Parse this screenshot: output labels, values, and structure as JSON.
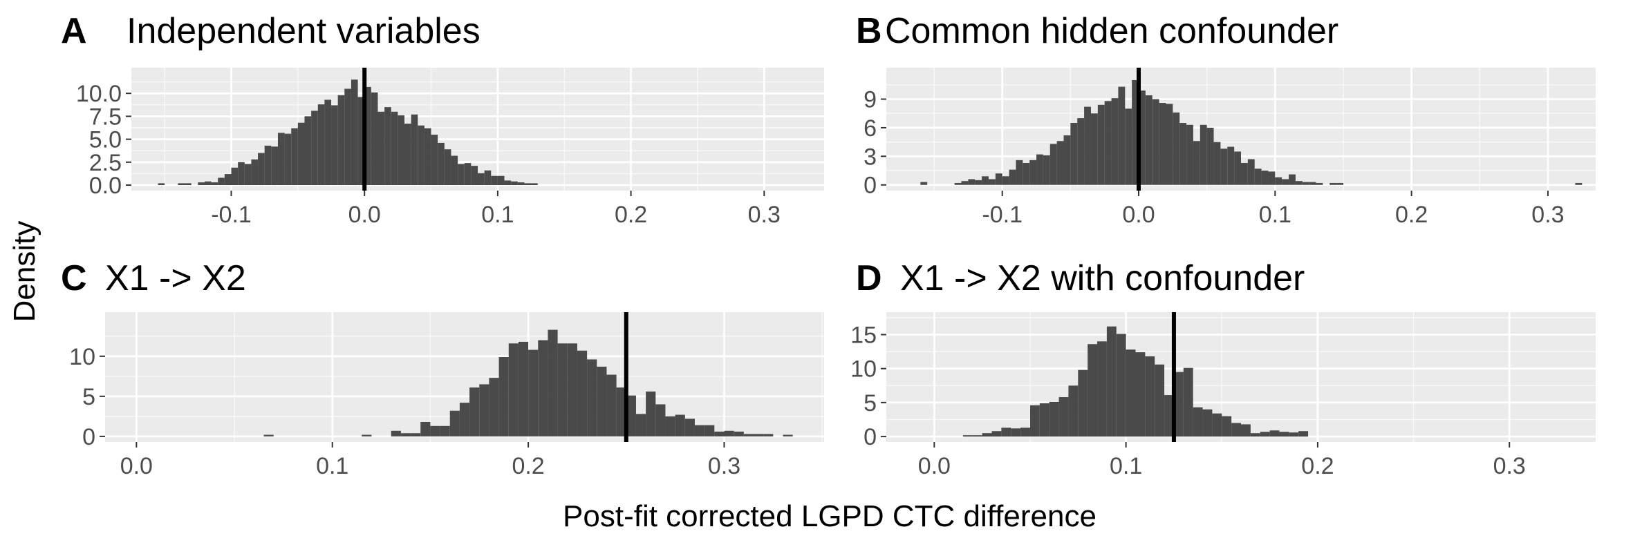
{
  "chart_data": [
    {
      "type": "bar",
      "tag": "A",
      "title": "Independent variables",
      "xlim": [
        -0.175,
        0.345
      ],
      "ylim": [
        -0.6,
        12.8
      ],
      "x_ticks": [
        -0.1,
        0.0,
        0.1,
        0.2,
        0.3
      ],
      "x_tick_labels": [
        "-0.1",
        "0.0",
        "0.1",
        "0.2",
        "0.3"
      ],
      "y_ticks": [
        0,
        2.5,
        5,
        7.5,
        10
      ],
      "y_tick_labels": [
        "0.0",
        "2.5",
        "5.0",
        "7.5",
        "10.0"
      ],
      "bin_width": 0.005,
      "bin_centers": [
        -0.1525,
        -0.1375,
        -0.1325,
        -0.1225,
        -0.1175,
        -0.1125,
        -0.1075,
        -0.1025,
        -0.0975,
        -0.0925,
        -0.0875,
        -0.0825,
        -0.0775,
        -0.0725,
        -0.0675,
        -0.0625,
        -0.0575,
        -0.0525,
        -0.0475,
        -0.0425,
        -0.0375,
        -0.0325,
        -0.0275,
        -0.0225,
        -0.0175,
        -0.0125,
        -0.0075,
        -0.0025,
        0.0025,
        0.0075,
        0.0125,
        0.0175,
        0.0225,
        0.0275,
        0.0325,
        0.0375,
        0.0425,
        0.0475,
        0.0525,
        0.0575,
        0.0625,
        0.0675,
        0.0725,
        0.0775,
        0.0825,
        0.0875,
        0.0925,
        0.0975,
        0.1025,
        0.1075,
        0.1125,
        0.1175,
        0.1225,
        0.1275
      ],
      "values": [
        0.2,
        0.2,
        0.2,
        0.3,
        0.4,
        0.3,
        0.8,
        1.2,
        1.9,
        2.5,
        2.3,
        2.8,
        3.5,
        4.3,
        4.2,
        5.7,
        5.6,
        6.2,
        6.8,
        7.5,
        8.1,
        8.8,
        9.3,
        8.7,
        9.8,
        10.5,
        11.5,
        9.6,
        10.7,
        10.1,
        8.0,
        8.5,
        8.0,
        7.6,
        6.7,
        7.7,
        6.5,
        6.2,
        5.5,
        4.6,
        3.9,
        3.2,
        2.3,
        2.4,
        2.1,
        1.3,
        1.6,
        1.0,
        1.0,
        0.5,
        0.4,
        0.3,
        0.2,
        0.2
      ],
      "reference_line_x": 0.0,
      "grid": true
    },
    {
      "type": "bar",
      "tag": "B",
      "title": "Common hidden confounder",
      "xlim": [
        -0.185,
        0.335
      ],
      "ylim": [
        -0.6,
        12.3
      ],
      "x_ticks": [
        -0.1,
        0.0,
        0.1,
        0.2,
        0.3
      ],
      "x_tick_labels": [
        "-0.1",
        "0.0",
        "0.1",
        "0.2",
        "0.3"
      ],
      "y_ticks": [
        0,
        3,
        6,
        9
      ],
      "y_tick_labels": [
        "0",
        "3",
        "6",
        "9"
      ],
      "bin_width": 0.005,
      "bin_centers": [
        -0.1575,
        -0.1325,
        -0.1275,
        -0.1225,
        -0.1175,
        -0.1125,
        -0.1075,
        -0.1025,
        -0.0975,
        -0.0925,
        -0.0875,
        -0.0825,
        -0.0775,
        -0.0725,
        -0.0675,
        -0.0625,
        -0.0575,
        -0.0525,
        -0.0475,
        -0.0425,
        -0.0375,
        -0.0325,
        -0.0275,
        -0.0225,
        -0.0175,
        -0.0125,
        -0.0075,
        -0.0025,
        0.0025,
        0.0075,
        0.0125,
        0.0175,
        0.0225,
        0.0275,
        0.0325,
        0.0375,
        0.0425,
        0.0475,
        0.0525,
        0.0575,
        0.0625,
        0.0675,
        0.0725,
        0.0775,
        0.0825,
        0.0875,
        0.0925,
        0.0975,
        0.1025,
        0.1075,
        0.1125,
        0.1175,
        0.1225,
        0.1275,
        0.1325,
        0.1425,
        0.1475,
        0.3225
      ],
      "values": [
        0.3,
        0.2,
        0.4,
        0.6,
        0.5,
        0.9,
        0.6,
        1.2,
        0.9,
        1.6,
        2.6,
        2.3,
        2.6,
        3.2,
        3.1,
        4.3,
        4.6,
        5.2,
        6.5,
        7.0,
        8.2,
        7.5,
        8.4,
        8.8,
        9.1,
        10.3,
        8.0,
        11.0,
        9.9,
        9.4,
        9.0,
        8.6,
        8.5,
        7.6,
        6.5,
        6.3,
        4.6,
        6.3,
        6.0,
        4.5,
        3.8,
        4.0,
        3.5,
        2.3,
        2.7,
        1.7,
        1.5,
        1.4,
        0.8,
        0.6,
        1.1,
        0.4,
        0.3,
        0.3,
        0.2,
        0.2,
        0.2,
        0.2
      ],
      "reference_line_x": 0.0,
      "grid": true
    },
    {
      "type": "bar",
      "tag": "C",
      "title": "X1 -> X2",
      "xlim": [
        -0.016,
        0.351
      ],
      "ylim": [
        -0.7,
        15.5
      ],
      "x_ticks": [
        0.0,
        0.1,
        0.2,
        0.3
      ],
      "x_tick_labels": [
        "0.0",
        "0.1",
        "0.2",
        "0.3"
      ],
      "y_ticks": [
        0,
        5,
        10
      ],
      "y_tick_labels": [
        "0",
        "5",
        "10"
      ],
      "bin_width": 0.005,
      "bin_centers": [
        0.0675,
        0.1175,
        0.1325,
        0.1375,
        0.1425,
        0.1475,
        0.1525,
        0.1575,
        0.1625,
        0.1675,
        0.1725,
        0.1775,
        0.1825,
        0.1875,
        0.1925,
        0.1975,
        0.2025,
        0.2075,
        0.2125,
        0.2175,
        0.2225,
        0.2275,
        0.2325,
        0.2375,
        0.2425,
        0.2475,
        0.2525,
        0.2575,
        0.2625,
        0.2675,
        0.2725,
        0.2775,
        0.2825,
        0.2875,
        0.2925,
        0.2975,
        0.3025,
        0.3075,
        0.3125,
        0.3175,
        0.3225,
        0.3325
      ],
      "values": [
        0.2,
        0.2,
        0.7,
        0.4,
        0.4,
        1.8,
        1.3,
        1.3,
        3.2,
        4.2,
        6.1,
        6.5,
        7.3,
        9.9,
        11.6,
        11.8,
        10.8,
        12.0,
        13.3,
        11.6,
        11.6,
        10.7,
        9.6,
        8.7,
        7.7,
        6.1,
        5.1,
        2.8,
        5.6,
        4.0,
        2.5,
        2.7,
        2.2,
        1.4,
        1.4,
        0.6,
        0.7,
        0.6,
        0.3,
        0.3,
        0.3,
        0.2
      ],
      "reference_line_x": 0.25,
      "grid": true
    },
    {
      "type": "bar",
      "tag": "D",
      "title": "X1 -> X2 with confounder",
      "xlim": [
        -0.025,
        0.345
      ],
      "ylim": [
        -0.8,
        18.3
      ],
      "x_ticks": [
        0.0,
        0.1,
        0.2,
        0.3
      ],
      "x_tick_labels": [
        "0.0",
        "0.1",
        "0.2",
        "0.3"
      ],
      "y_ticks": [
        0,
        5,
        10,
        15
      ],
      "y_tick_labels": [
        "0",
        "5",
        "10",
        "15"
      ],
      "bin_width": 0.005,
      "bin_centers": [
        0.0175,
        0.0225,
        0.0275,
        0.0325,
        0.0375,
        0.0425,
        0.0475,
        0.0525,
        0.0575,
        0.0625,
        0.0675,
        0.0725,
        0.0775,
        0.0825,
        0.0875,
        0.0925,
        0.0975,
        0.1025,
        0.1075,
        0.1125,
        0.1175,
        0.1225,
        0.1275,
        0.1325,
        0.1375,
        0.1425,
        0.1475,
        0.1525,
        0.1575,
        0.1625,
        0.1675,
        0.1725,
        0.1775,
        0.1825,
        0.1875,
        0.1925
      ],
      "values": [
        0.2,
        0.2,
        0.5,
        0.8,
        1.3,
        1.2,
        1.3,
        4.6,
        4.9,
        5.1,
        5.8,
        7.5,
        9.8,
        13.6,
        14.0,
        16.2,
        15.1,
        12.8,
        12.4,
        11.8,
        10.6,
        6.1,
        9.5,
        10.1,
        4.3,
        4.0,
        3.4,
        3.0,
        2.0,
        1.8,
        0.5,
        0.7,
        0.9,
        0.7,
        0.6,
        0.8
      ],
      "reference_line_x": 0.125,
      "grid": true
    }
  ],
  "shared_ylabel": "Density",
  "shared_xlabel": "Post-fit corrected LGPD CTC difference",
  "colors": {
    "panel_background": "#ebebeb",
    "grid_major": "#ffffff",
    "bar_fill": "#4a4a4a",
    "reference_line": "#000000",
    "tick_text": "#4d4d4d"
  }
}
